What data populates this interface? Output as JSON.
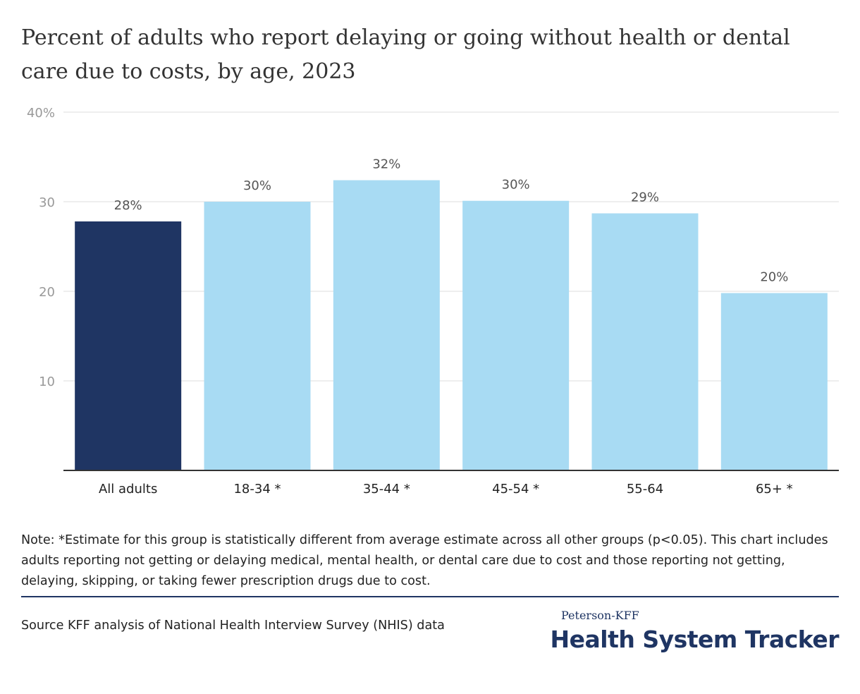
{
  "title": "Percent of adults who report delaying or going without health or dental care due to costs, by age, 2023",
  "note": "Note: *Estimate for this group is statistically different from average estimate across all other groups (p<0.05). This chart includes adults reporting not getting or delaying medical, mental health, or dental care due to cost and those reporting not getting, delaying, skipping, or taking fewer prescription drugs due to cost.",
  "source": "Source KFF analysis of National Health Interview Survey (NHIS) data",
  "logo": {
    "small": "Peterson-KFF",
    "big": "Health System Tracker"
  },
  "colors": {
    "highlight": "#1f3563",
    "bar": "#a8dbf3",
    "grid": "#dddddd",
    "axis": "#333333",
    "tick": "#999999",
    "label": "#555555"
  },
  "chart_data": {
    "type": "bar",
    "categories": [
      "All adults",
      "18-34 *",
      "35-44 *",
      "45-54 *",
      "55-64",
      "65+ *"
    ],
    "values": [
      27.8,
      30.0,
      32.4,
      30.1,
      28.7,
      19.8
    ],
    "data_labels": [
      "28%",
      "30%",
      "32%",
      "30%",
      "29%",
      "20%"
    ],
    "highlight_index": 0,
    "ylim": [
      0,
      40
    ],
    "yticks": [
      10,
      20,
      30,
      40
    ],
    "ytick_labels": [
      "10",
      "20",
      "30",
      "40%"
    ],
    "grid": true,
    "xlabel": "",
    "ylabel": ""
  }
}
